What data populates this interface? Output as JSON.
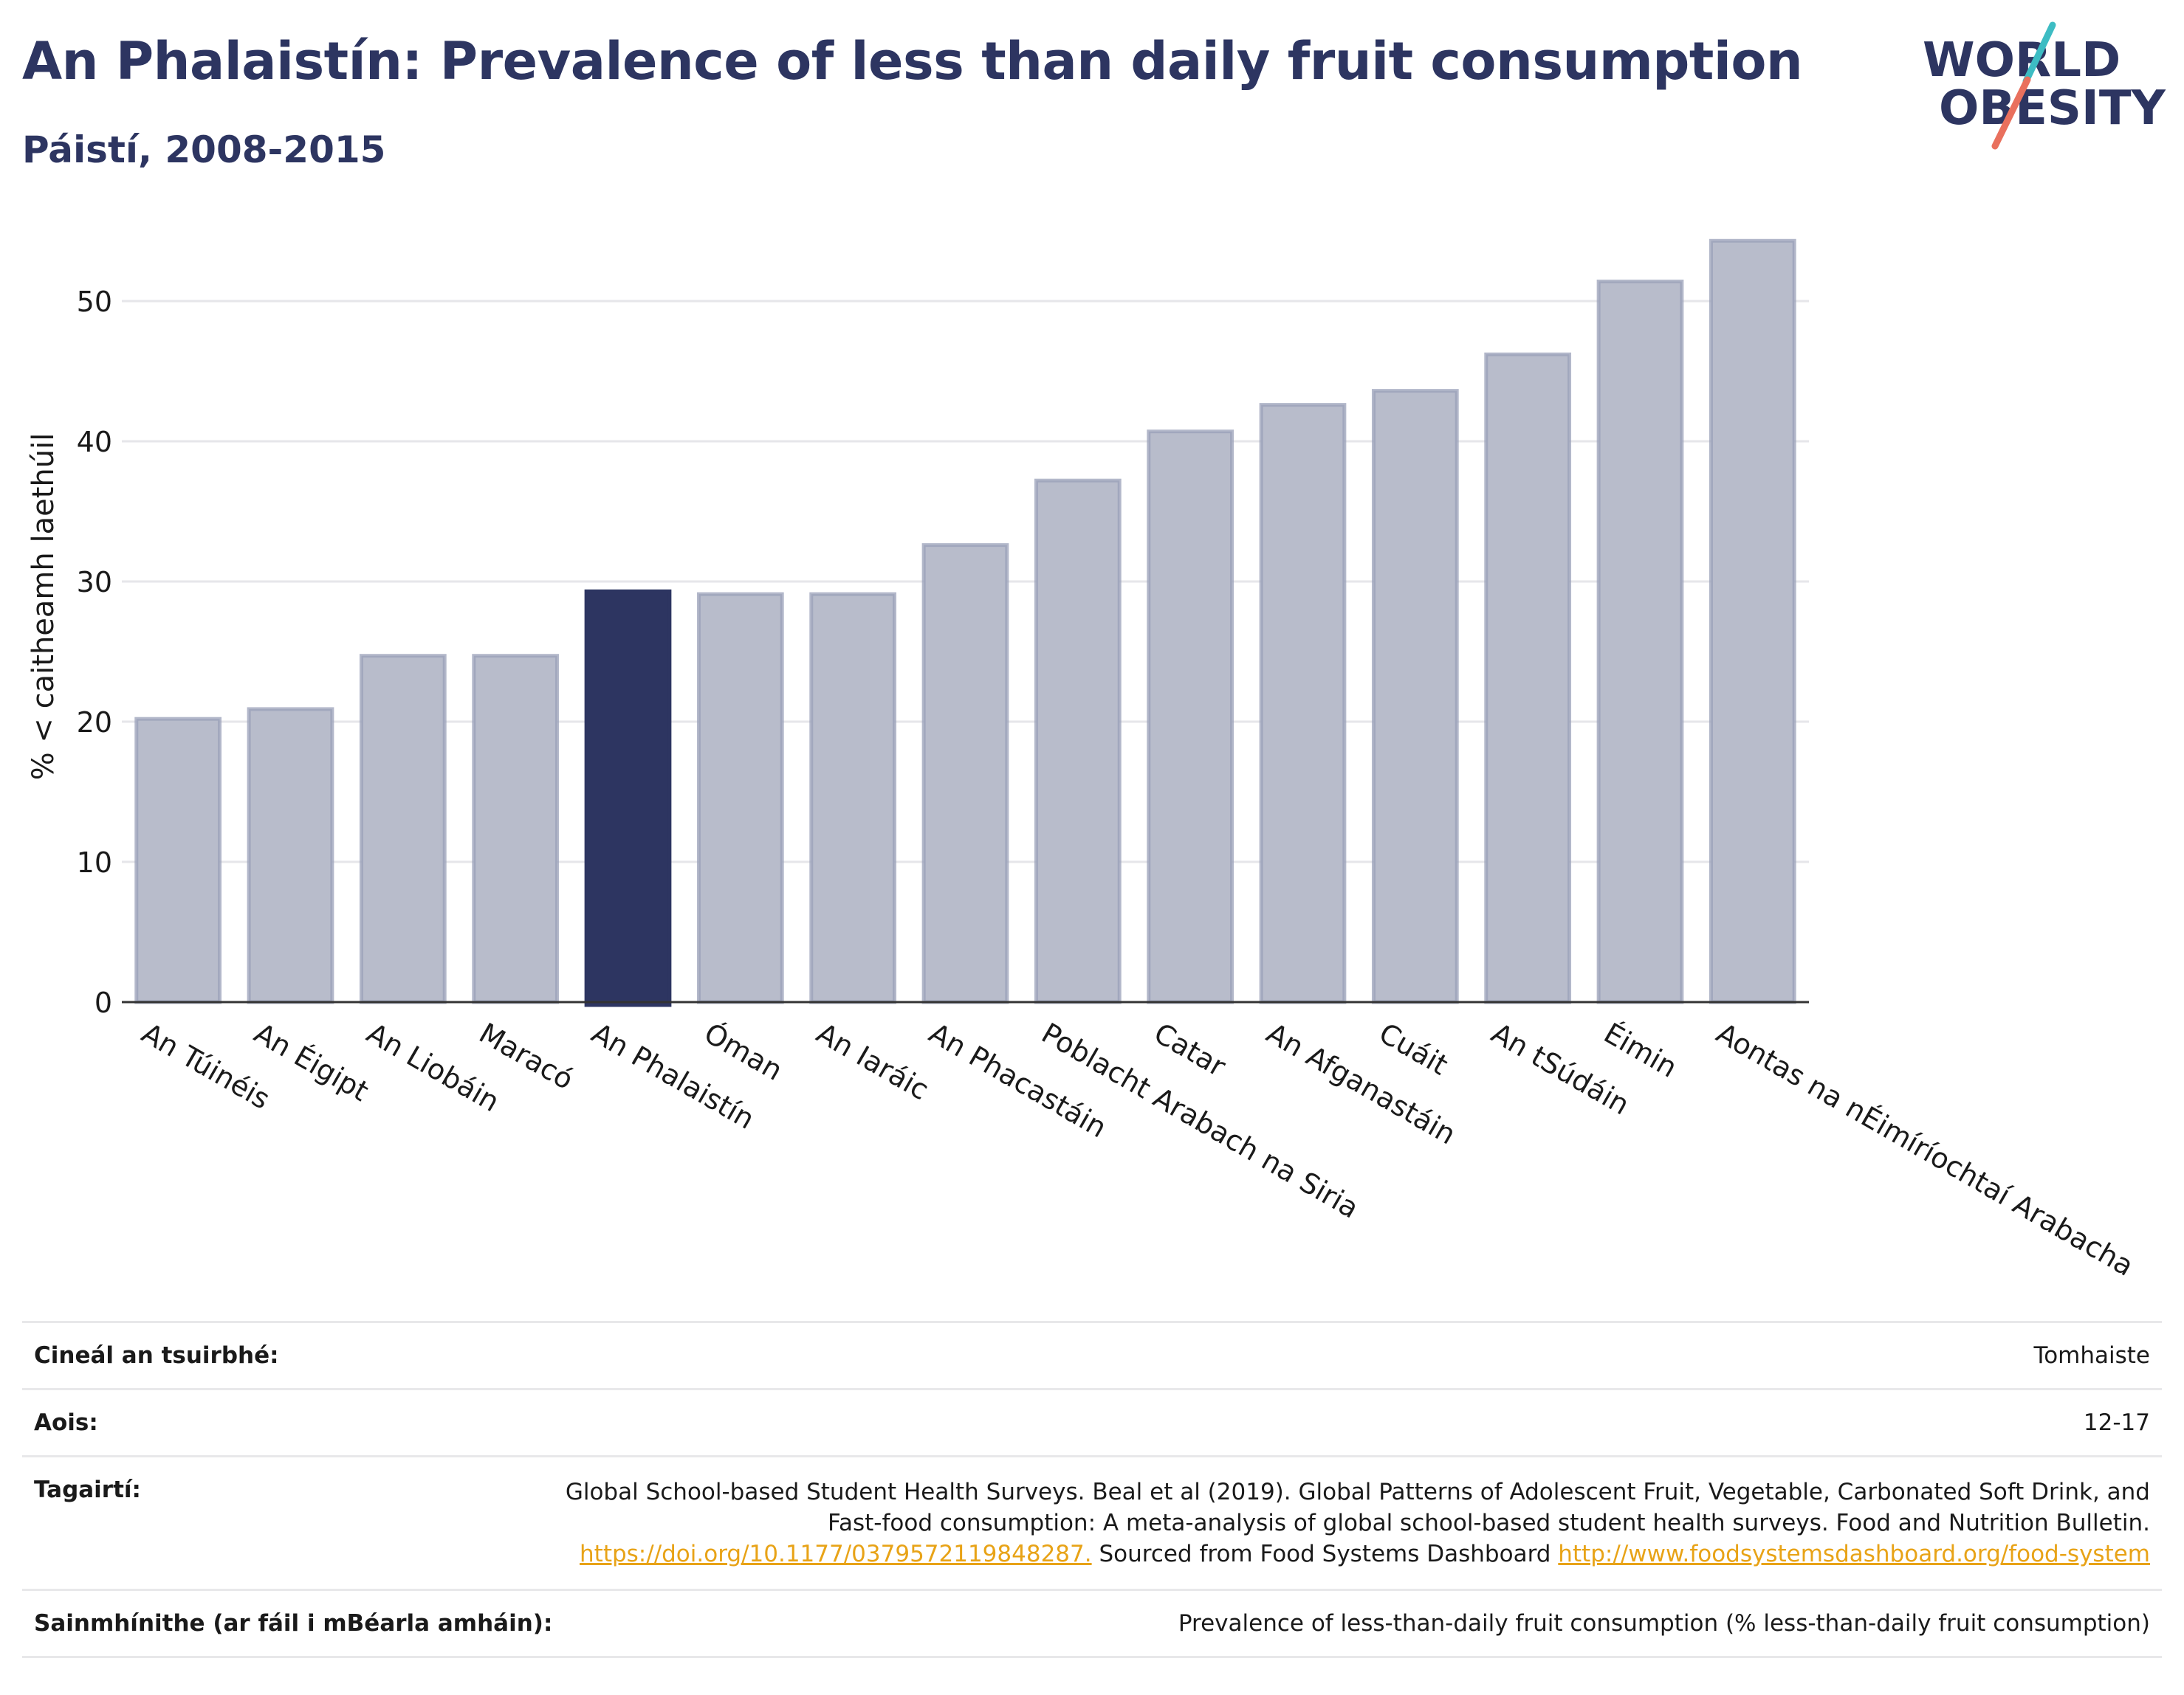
{
  "header": {
    "title": "An Phalaistín: Prevalence of less than daily fruit consumption",
    "subtitle": "Páistí, 2008-2015"
  },
  "logo": {
    "line1": "WORLD",
    "line2": "OBESITY"
  },
  "colors": {
    "bar": "#b8bccb",
    "bar_edge": "#9aa0b8",
    "highlight": "#2d3561",
    "accent_teal": "#3dbcc3",
    "accent_red": "#e9705d",
    "link": "#e8a317"
  },
  "chart_data": {
    "type": "bar",
    "title": "An Phalaistín: Prevalence of less than daily fruit consumption",
    "subtitle": "Páistí, 2008-2015",
    "ylabel": "% < caitheamh laethúil",
    "xlabel": "",
    "ylim": [
      0,
      55
    ],
    "yticks": [
      0,
      10,
      20,
      30,
      40,
      50
    ],
    "grid": true,
    "categories": [
      "An Túinéis",
      "An Éigipt",
      "An Liobáin",
      "Maracó",
      "An Phalaistín",
      "Óman",
      "An Iaráic",
      "An Phacastáin",
      "Poblacht Arabach na Siria",
      "Catar",
      "An Afganastáin",
      "Cuáit",
      "An tSúdáin",
      "Éimin",
      "Aontas na nÉimíríochtaí Arabacha"
    ],
    "values": [
      20.2,
      20.9,
      24.7,
      24.7,
      29.3,
      29.1,
      29.1,
      32.6,
      37.2,
      40.7,
      42.6,
      43.6,
      46.2,
      51.4,
      54.3
    ],
    "highlight": "An Phalaistín"
  },
  "info": {
    "survey_label": "Cineál an tsuirbhé:",
    "survey_value": "Tomhaiste",
    "age_label": "Aois:",
    "age_value": "12-17",
    "refs_label": "Tagairtí:",
    "refs_text1": "Global School-based Student Health Surveys. Beal et al (2019). Global Patterns of Adolescent Fruit, Vegetable, Carbonated Soft Drink, and Fast-food consumption: A meta-analysis of global school-based student health surveys. Food and Nutrition Bulletin. ",
    "refs_link1": "https://doi.org/10.1177/0379572119848287.",
    "refs_text2": " Sourced from Food Systems Dashboard ",
    "refs_link2": "http://www.foodsystemsdashboard.org/food-system",
    "def_label": "Sainmhínithe (ar fáil i mBéarla amháin):",
    "def_value": "Prevalence of less-than-daily fruit consumption (% less-than-daily fruit consumption)"
  }
}
